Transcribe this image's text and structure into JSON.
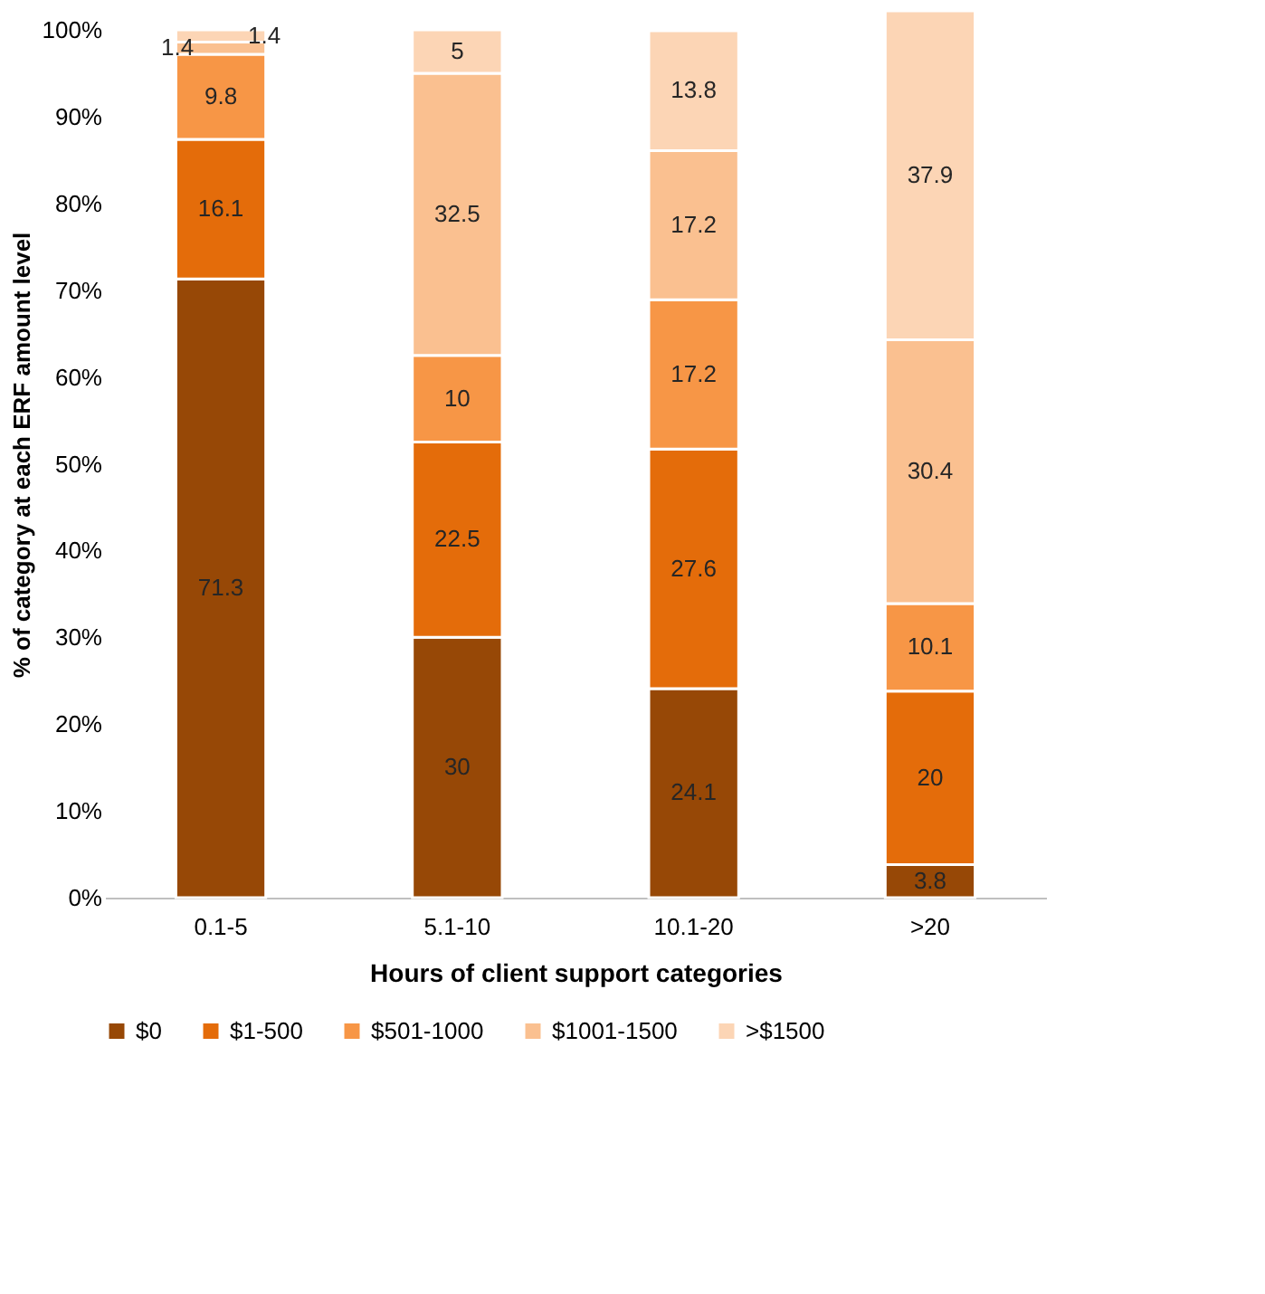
{
  "chart_data": {
    "type": "bar",
    "stacked": true,
    "xlabel": "Hours of client support categories",
    "ylabel": "% of category at each ERF amount level",
    "categories": [
      "0.1-5",
      "5.1-10",
      "10.1-20",
      ">20"
    ],
    "series": [
      {
        "name": "$0",
        "color": "#974806",
        "values": [
          71.3,
          30,
          24.1,
          3.8
        ]
      },
      {
        "name": "$1-500",
        "color": "#e46c0a",
        "values": [
          16.1,
          22.5,
          27.6,
          20
        ]
      },
      {
        "name": "$501-1000",
        "color": "#f79646",
        "values": [
          9.8,
          10,
          17.2,
          10.1
        ]
      },
      {
        "name": "$1001-1500",
        "color": "#fac090",
        "values": [
          1.4,
          32.5,
          17.2,
          30.4
        ]
      },
      {
        "name": ">$1500",
        "color": "#fcd5b5",
        "values": [
          1.4,
          5,
          13.8,
          37.9
        ]
      }
    ],
    "ylim": [
      0,
      102.2
    ],
    "yticks": [
      {
        "value": 0,
        "label": "0%"
      },
      {
        "value": 10,
        "label": "10%"
      },
      {
        "value": 20,
        "label": "20%"
      },
      {
        "value": 30,
        "label": "30%"
      },
      {
        "value": 40,
        "label": "40%"
      },
      {
        "value": 50,
        "label": "50%"
      },
      {
        "value": 60,
        "label": "60%"
      },
      {
        "value": 70,
        "label": "70%"
      },
      {
        "value": 80,
        "label": "80%"
      },
      {
        "value": 90,
        "label": "90%"
      },
      {
        "value": 100,
        "label": "100%"
      }
    ],
    "data_labels": true,
    "legend": "bottom",
    "grid": false
  }
}
